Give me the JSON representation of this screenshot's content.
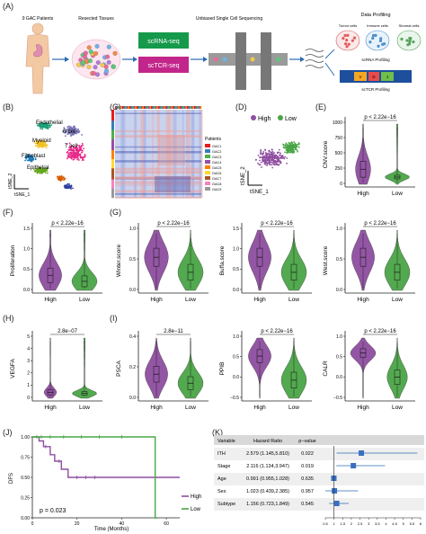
{
  "panel_labels": [
    "(A)",
    "(B)",
    "(C)",
    "(D)",
    "(E)",
    "(F)",
    "(G)",
    "(H)",
    "(I)",
    "(J)",
    "(K)"
  ],
  "workflow": {
    "patients_label": "9 GAC Patients",
    "tissues_label": "Resected Tissues",
    "sequencing_label": "Unbiased Single Cell Sequencing",
    "profiling_label": "Data Profiling",
    "scrna_box": "scRNA-seq",
    "sctcr_box": "scTCR-seq",
    "tumor_cells": "Tumor cells",
    "immune_cells": "Immune cells",
    "stromal_cells": "Stromal cells",
    "scrna_profiling": "scRNA Profiling",
    "sctcr_profiling": "scTCR Profiling",
    "segments": [
      "V",
      "D",
      "J"
    ],
    "colors": {
      "scrna": "#159a4b",
      "sctcr": "#c2268a"
    }
  },
  "tsne_b": {
    "labels": [
      "Endothelial",
      "B cell",
      "Myeloid",
      "T cell",
      "Fibroblast",
      "Epithelial"
    ],
    "axis_y": "tSNE_2",
    "axis_x": "tSNE_1"
  },
  "heatmap_c": {
    "legend_title": "Patients",
    "patients": [
      "GAC1",
      "GAC2",
      "GAC3",
      "GAC4",
      "GAC5",
      "GAC6",
      "GAC7",
      "GAC8",
      "GAC9"
    ],
    "patient_colors": [
      "#e41a1c",
      "#377eb8",
      "#4daf4a",
      "#984ea3",
      "#ff7f00",
      "#ffd92f",
      "#a65628",
      "#f781bf",
      "#999999"
    ]
  },
  "tsne_d": {
    "legend": [
      "High",
      "Low"
    ],
    "axis_y": "tSNE_2",
    "axis_x": "tSNE_1"
  },
  "colors": {
    "high": "#8e4ea0",
    "low": "#4aa546"
  },
  "violins": {
    "E": {
      "ylabel": "CNV.score",
      "pval": "p < 2.22e−16",
      "yticks": [
        "0",
        "250",
        "500",
        "750",
        "1000"
      ]
    },
    "F": {
      "ylabel": "Proliferation",
      "pval": "p < 2.22e−16",
      "yticks": [
        "0.0",
        "0.5",
        "1.0",
        "1.5"
      ]
    },
    "G1": {
      "ylabel": "Winter.score",
      "pval": "p < 2.22e−16",
      "yticks": [
        "0.0",
        "0.5",
        "1.0"
      ]
    },
    "G2": {
      "ylabel": "Buffa.score",
      "pval": "p < 2.22e−16",
      "yticks": [
        "0.0",
        "0.5",
        "1.0",
        "1.5"
      ]
    },
    "G3": {
      "ylabel": "West.score",
      "pval": "p < 2.22e−16",
      "yticks": [
        "0.0",
        "0.5",
        "1.0"
      ]
    },
    "H": {
      "ylabel": "VEGFA",
      "pval": "2.8e−07",
      "yticks": [
        "0",
        "1",
        "2",
        "3",
        "4",
        "5"
      ]
    },
    "I1": {
      "ylabel": "PSCA",
      "pval": "2.8e−11",
      "yticks": [
        "0.0",
        "0.2",
        "0.4"
      ]
    },
    "I2": {
      "ylabel": "PPIB",
      "pval": "p < 2.22e−16",
      "yticks": [
        "−0.5",
        "0.0",
        "0.5",
        "1.0"
      ]
    },
    "I3": {
      "ylabel": "CALR",
      "pval": "p < 2.22e−16",
      "yticks": [
        "−0.5",
        "0.0",
        "0.5",
        "1.0"
      ]
    },
    "categories": [
      "High",
      "Low"
    ]
  },
  "chart_data": [
    {
      "type": "line",
      "title": "",
      "xlabel": "Time (Months)",
      "ylabel": "DFS",
      "annotation": "p = 0.023",
      "xticks": [
        "0",
        "20",
        "40",
        "60"
      ],
      "yticks": [
        "0.00",
        "0.25",
        "0.50",
        "0.75",
        "1.00"
      ],
      "xlim": [
        0,
        66
      ],
      "ylim": [
        0,
        1
      ],
      "legend": "bottom-right",
      "series": [
        {
          "name": "High",
          "x": [
            0,
            3,
            5,
            8,
            10,
            13,
            16,
            66
          ],
          "y": [
            1.0,
            0.95,
            0.88,
            0.78,
            0.7,
            0.6,
            0.5,
            0.5
          ]
        },
        {
          "name": "Low",
          "x": [
            0,
            55,
            55,
            56
          ],
          "y": [
            1.0,
            1.0,
            0.0,
            0.0
          ]
        }
      ]
    },
    {
      "type": "table",
      "title": "",
      "columns": [
        "Variable",
        "Hazard Ratio",
        "p−value"
      ],
      "rows": [
        {
          "variable": "ITH",
          "hr_text": "2.579 (1.145,5.810)",
          "p": "0.022",
          "hr": 2.579,
          "lo": 1.145,
          "hi": 5.81
        },
        {
          "variable": "Stage",
          "hr_text": "2.116 (1.134,3.947)",
          "p": "0.019",
          "hr": 2.116,
          "lo": 1.134,
          "hi": 3.947
        },
        {
          "variable": "Age",
          "hr_text": "0.991 (0.955,1.028)",
          "p": "0.635",
          "hr": 0.991,
          "lo": 0.955,
          "hi": 1.028
        },
        {
          "variable": "Sex",
          "hr_text": "1.023 (0.439,2.385)",
          "p": "0.957",
          "hr": 1.023,
          "lo": 0.439,
          "hi": 2.385
        },
        {
          "variable": "Subtype",
          "hr_text": "1.156 (0.723,1.849)",
          "p": "0.545",
          "hr": 1.156,
          "lo": 0.723,
          "hi": 1.849
        }
      ],
      "xticks": [
        "0.5",
        "1",
        "1.5",
        "2",
        "2.5",
        "3",
        "3.5",
        "4",
        "4.5",
        "5",
        "5.5",
        "6"
      ],
      "xlim": [
        0.5,
        6
      ]
    }
  ]
}
